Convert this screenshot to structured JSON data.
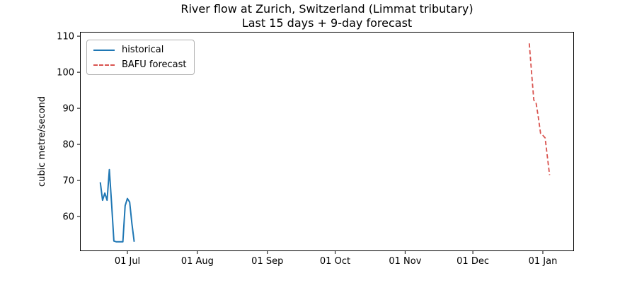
{
  "figure": {
    "title": "River flow at Zurich, Switzerland (Limmat tributary)",
    "subtitle": "Last 15 days + 9-day forecast",
    "ylabel": "cubic metre/second"
  },
  "legend": {
    "items": [
      {
        "label": "historical",
        "style": "solid"
      },
      {
        "label": "BAFU forecast",
        "style": "dashed"
      }
    ]
  },
  "colors": {
    "historical": "#1f77b4",
    "forecast": "#d9534f",
    "axis": "#000000",
    "tick_text": "#000000",
    "legend_border": "#b0b0b0"
  },
  "chart_data": {
    "type": "line",
    "title": "River flow at Zurich, Switzerland (Limmat tributary)",
    "subtitle": "Last 15 days + 9-day forecast",
    "xlabel": "",
    "ylabel": "cubic metre/second",
    "grid": false,
    "legend_position": "upper left",
    "x_unit": "days relative to 01 Jul",
    "xlim": [
      -21.0,
      197.8
    ],
    "ylim": [
      50.4,
      111.2
    ],
    "y_ticks": [
      60,
      70,
      80,
      90,
      100,
      110
    ],
    "x_ticks": [
      {
        "day": 0,
        "label": "01 Jul"
      },
      {
        "day": 31,
        "label": "01 Aug"
      },
      {
        "day": 62,
        "label": "01 Sep"
      },
      {
        "day": 92,
        "label": "01 Oct"
      },
      {
        "day": 123,
        "label": "01 Nov"
      },
      {
        "day": 153,
        "label": "01 Dec"
      },
      {
        "day": 184,
        "label": "01 Jan"
      }
    ],
    "series": [
      {
        "name": "historical",
        "style": "solid",
        "color": "#1f77b4",
        "dates": [
          "19 Jun",
          "20 Jun",
          "21 Jun",
          "22 Jun",
          "23 Jun",
          "24 Jun",
          "25 Jun",
          "26 Jun",
          "27 Jun",
          "28 Jun",
          "29 Jun",
          "30 Jun",
          "01 Jul",
          "02 Jul",
          "03 Jul",
          "04 Jul"
        ],
        "x": [
          -12,
          -11,
          -10,
          -9,
          -8,
          -7,
          -6,
          -5,
          -4,
          -3,
          -2,
          -1,
          0,
          1,
          2,
          3
        ],
        "values": [
          69.5,
          64.5,
          66.5,
          64.5,
          73.0,
          63.5,
          53.2,
          53.0,
          53.0,
          53.0,
          53.0,
          63.0,
          65.0,
          64.0,
          58.0,
          53.0
        ]
      },
      {
        "name": "BAFU forecast",
        "style": "dashed",
        "color": "#d9534f",
        "dates": [
          "26 Dec",
          "27 Dec",
          "28 Dec",
          "29 Dec",
          "30 Dec",
          "31 Dec",
          "01 Jan",
          "02 Jan",
          "03 Jan",
          "04 Jan"
        ],
        "x": [
          178,
          179,
          180,
          181,
          182,
          183,
          184,
          185,
          186,
          187
        ],
        "values": [
          108.0,
          100.0,
          92.3,
          91.5,
          87.5,
          83.0,
          82.5,
          81.8,
          76.5,
          71.5
        ]
      }
    ]
  }
}
